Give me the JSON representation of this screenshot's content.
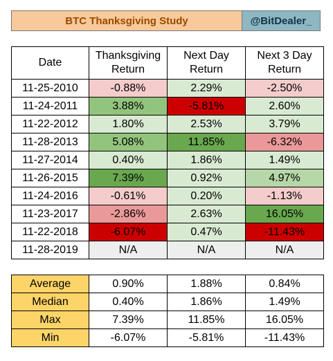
{
  "header": {
    "title": "BTC Thanksgiving Study",
    "handle": "@BitDealer_"
  },
  "columns": {
    "date": "Date",
    "thanks_l1": "Thanksgiving",
    "thanks_l2": "Return",
    "next_l1": "Next Day",
    "next_l2": "Return",
    "next3_l1": "Next 3 Day",
    "next3_l2": "Return"
  },
  "rows": [
    {
      "date": "11-25-2010",
      "thanks": "-0.88%",
      "next": "2.29%",
      "next3": "-2.50%"
    },
    {
      "date": "11-24-2011",
      "thanks": "3.88%",
      "next": "-5.81%",
      "next3": "2.60%"
    },
    {
      "date": "11-22-2012",
      "thanks": "1.80%",
      "next": "2.53%",
      "next3": "3.79%"
    },
    {
      "date": "11-28-2013",
      "thanks": "5.08%",
      "next": "11.85%",
      "next3": "-6.32%"
    },
    {
      "date": "11-27-2014",
      "thanks": "0.40%",
      "next": "1.86%",
      "next3": "1.49%"
    },
    {
      "date": "11-26-2015",
      "thanks": "7.39%",
      "next": "0.92%",
      "next3": "4.97%"
    },
    {
      "date": "11-24-2016",
      "thanks": "-0.61%",
      "next": "0.20%",
      "next3": "-1.13%"
    },
    {
      "date": "11-23-2017",
      "thanks": "-2.86%",
      "next": "2.63%",
      "next3": "16.05%"
    },
    {
      "date": "11-22-2018",
      "thanks": "-6.07%",
      "next": "0.47%",
      "next3": "-11.43%"
    },
    {
      "date": "11-28-2019",
      "thanks": "N/A",
      "next": "N/A",
      "next3": "N/A"
    }
  ],
  "cell_colors": [
    [
      "#f4cccc",
      "#d9ead3",
      "#f4cccc"
    ],
    [
      "#93c47d",
      "#cc0000",
      "#d9ead3"
    ],
    [
      "#d9ead3",
      "#d9ead3",
      "#d9ead3"
    ],
    [
      "#93c47d",
      "#6aa84f",
      "#ea9999"
    ],
    [
      "#d9ead3",
      "#d9ead3",
      "#d9ead3"
    ],
    [
      "#6aa84f",
      "#d9ead3",
      "#b6d7a8"
    ],
    [
      "#f4cccc",
      "#d9ead3",
      "#f4cccc"
    ],
    [
      "#ea9999",
      "#d9ead3",
      "#6aa84f"
    ],
    [
      "#cc0000",
      "#d9ead3",
      "#cc0000"
    ],
    [
      "#eeeeee",
      "#eeeeee",
      "#eeeeee"
    ]
  ],
  "stats": [
    {
      "label": "Average",
      "thanks": "0.90%",
      "next": "1.88%",
      "next3": "0.84%"
    },
    {
      "label": "Median",
      "thanks": "0.40%",
      "next": "1.86%",
      "next3": "1.49%"
    },
    {
      "label": "Max",
      "thanks": "7.39%",
      "next": "11.85%",
      "next3": "16.05%"
    },
    {
      "label": "Min",
      "thanks": "-6.07%",
      "next": "-5.81%",
      "next3": "-11.43%"
    }
  ],
  "colors": {
    "stat_label_bg": "#fcd468",
    "title_bg": "#f8c99a",
    "handle_bg": "#8db8c2"
  }
}
